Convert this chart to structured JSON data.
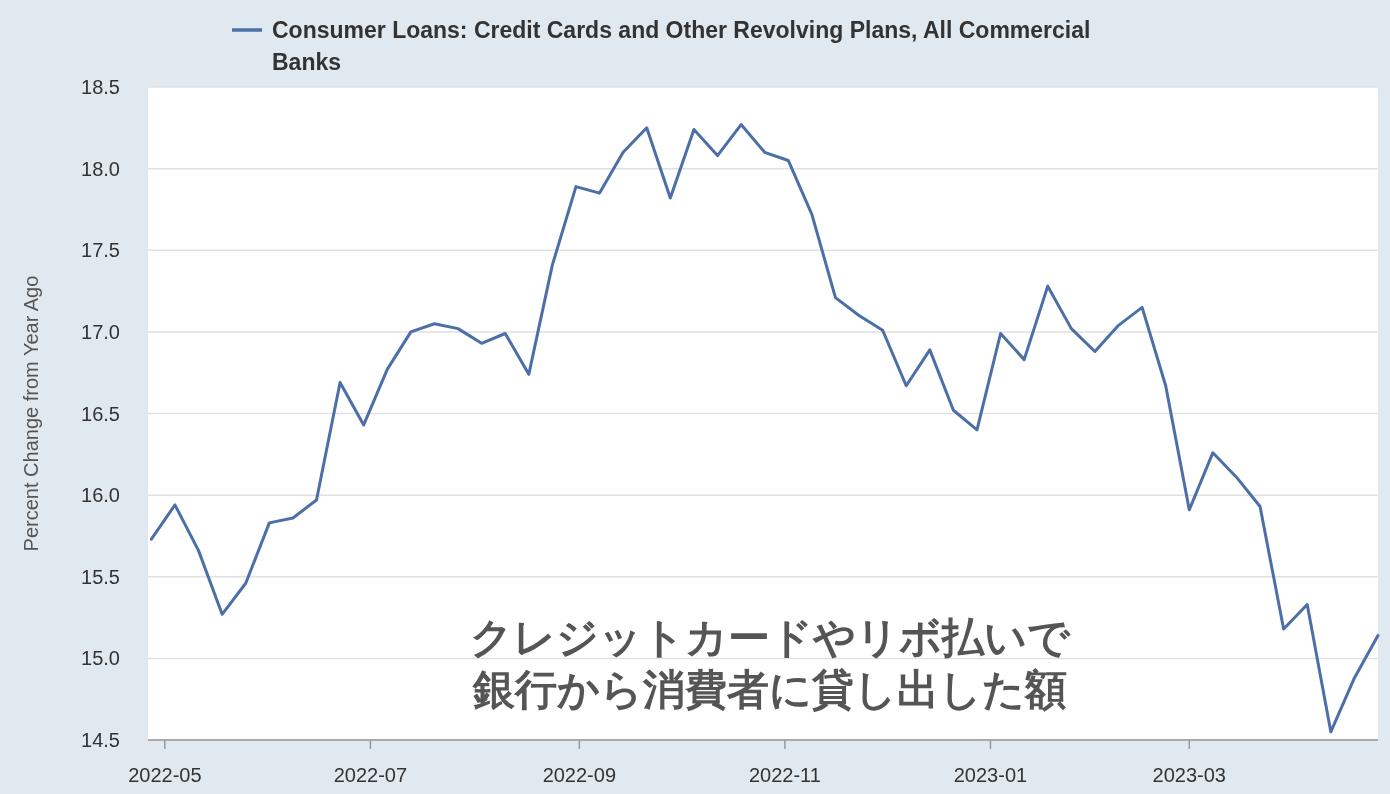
{
  "chart_data": {
    "type": "line",
    "ylabel": "Percent Change from Year Ago",
    "annotations": [
      "クレジットカードやリボ払いで",
      "銀行から消費者に貸し出した額"
    ],
    "x": [
      "2022-04-27",
      "2022-05-04",
      "2022-05-11",
      "2022-05-18",
      "2022-05-25",
      "2022-06-01",
      "2022-06-08",
      "2022-06-15",
      "2022-06-22",
      "2022-06-29",
      "2022-07-06",
      "2022-07-13",
      "2022-07-20",
      "2022-07-27",
      "2022-08-03",
      "2022-08-10",
      "2022-08-17",
      "2022-08-24",
      "2022-08-31",
      "2022-09-07",
      "2022-09-14",
      "2022-09-21",
      "2022-09-28",
      "2022-10-05",
      "2022-10-12",
      "2022-10-19",
      "2022-10-26",
      "2022-11-02",
      "2022-11-09",
      "2022-11-16",
      "2022-11-23",
      "2022-11-30",
      "2022-12-07",
      "2022-12-14",
      "2022-12-21",
      "2022-12-28",
      "2023-01-04",
      "2023-01-11",
      "2023-01-18",
      "2023-01-25",
      "2023-02-01",
      "2023-02-08",
      "2023-02-15",
      "2023-02-22",
      "2023-03-01",
      "2023-03-08",
      "2023-03-15",
      "2023-03-22",
      "2023-03-29",
      "2023-04-05",
      "2023-04-12",
      "2023-04-19",
      "2023-04-26"
    ],
    "series": [
      {
        "name": "Consumer Loans: Credit Cards and Other Revolving Plans, All Commercial Banks",
        "color": "#4b6fa6",
        "values": [
          15.73,
          15.94,
          15.66,
          15.27,
          15.46,
          15.83,
          15.86,
          15.97,
          16.69,
          16.43,
          16.77,
          17.0,
          17.05,
          17.02,
          16.93,
          16.99,
          16.74,
          17.41,
          17.89,
          17.85,
          18.1,
          18.25,
          17.82,
          18.24,
          18.08,
          18.27,
          18.1,
          18.05,
          17.72,
          17.21,
          17.1,
          17.01,
          16.67,
          16.89,
          16.52,
          16.4,
          16.99,
          16.83,
          17.28,
          17.02,
          16.88,
          17.04,
          17.15,
          16.67,
          15.91,
          16.26,
          16.11,
          15.93,
          15.18,
          15.33,
          14.55,
          14.88,
          15.14
        ]
      }
    ],
    "xlim": [
      "2022-04-26",
      "2023-04-26"
    ],
    "xticks": [
      {
        "value": "2022-05-01",
        "label": "2022-05"
      },
      {
        "value": "2022-07-01",
        "label": "2022-07"
      },
      {
        "value": "2022-09-01",
        "label": "2022-09"
      },
      {
        "value": "2022-11-01",
        "label": "2022-11"
      },
      {
        "value": "2023-01-01",
        "label": "2023-01"
      },
      {
        "value": "2023-03-01",
        "label": "2023-03"
      }
    ],
    "ylim": [
      14.5,
      18.5
    ],
    "yticks": [
      {
        "value": 14.5,
        "label": "14.5"
      },
      {
        "value": 15,
        "label": "15.0"
      },
      {
        "value": 15.5,
        "label": "15.5"
      },
      {
        "value": 16,
        "label": "16.0"
      },
      {
        "value": 16.5,
        "label": "16.5"
      },
      {
        "value": 17,
        "label": "17.0"
      },
      {
        "value": 17.5,
        "label": "17.5"
      },
      {
        "value": 18,
        "label": "18.0"
      },
      {
        "value": 18.5,
        "label": "18.5"
      }
    ],
    "grid": "y",
    "legend": "top",
    "line_style": "solid",
    "marker": "none"
  }
}
